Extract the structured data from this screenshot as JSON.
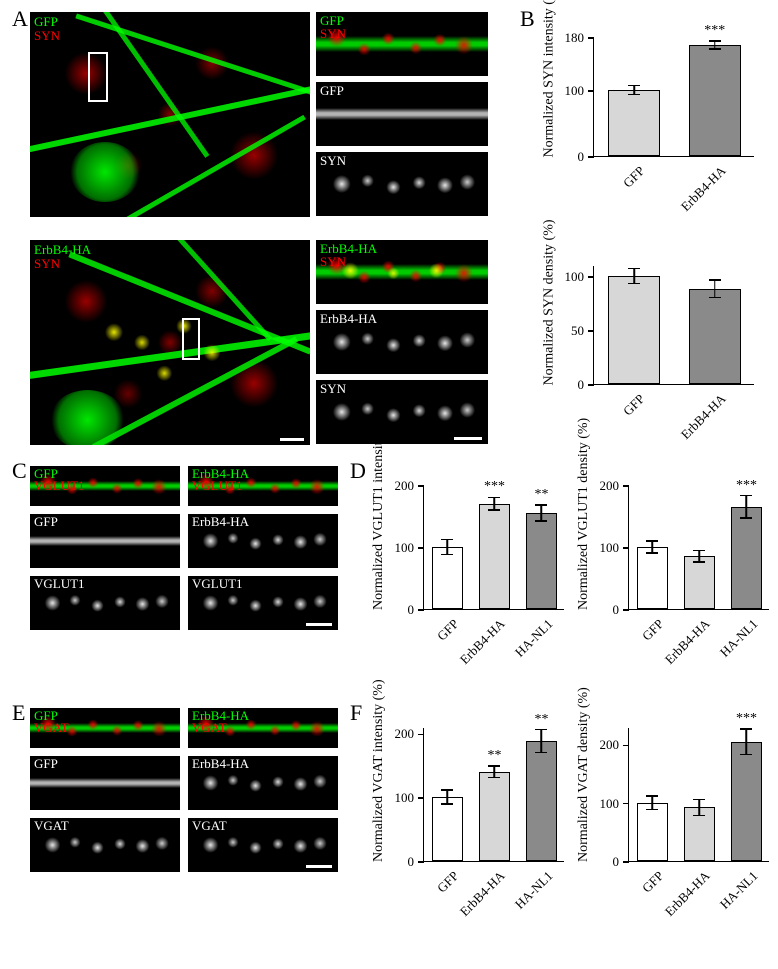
{
  "colors": {
    "green": "#00ff00",
    "red": "#ff0000",
    "white": "#ffffff",
    "black": "#000000",
    "bar_fill_light": "#d7d7d7",
    "bar_fill_mid": "#a9a9a9",
    "bar_fill_dark": "#8a8a8a",
    "page_bg": "#ffffff"
  },
  "panels": {
    "A": {
      "label": "A",
      "top_merge": {
        "labels": [
          "GFP",
          "SYN"
        ]
      },
      "top_insets": [
        {
          "labels": [
            "GFP",
            "SYN"
          ]
        },
        {
          "labels": [
            "GFP"
          ]
        },
        {
          "labels": [
            "SYN"
          ]
        }
      ],
      "bottom_merge": {
        "labels": [
          "ErbB4-HA",
          "SYN"
        ]
      },
      "bottom_insets": [
        {
          "labels": [
            "ErbB4-HA",
            "SYN"
          ]
        },
        {
          "labels": [
            "ErbB4-HA"
          ]
        },
        {
          "labels": [
            "SYN"
          ]
        }
      ]
    },
    "B": {
      "label": "B",
      "charts": [
        {
          "ylabel": "Normalized SYN intensity (%)",
          "ylim": [
            0,
            180
          ],
          "yticks": [
            0,
            100,
            180
          ],
          "bars": [
            {
              "label": "GFP",
              "value": 100,
              "err": 7,
              "fill": "#d7d7d7",
              "sig": ""
            },
            {
              "label": "ErbB4-HA",
              "value": 168,
              "err": 6,
              "fill": "#8a8a8a",
              "sig": "***"
            }
          ]
        },
        {
          "ylabel": "Normalized SYN density (%)",
          "ylim": [
            0,
            110
          ],
          "yticks": [
            0,
            50,
            100
          ],
          "bars": [
            {
              "label": "GFP",
              "value": 100,
              "err": 7,
              "fill": "#d7d7d7",
              "sig": ""
            },
            {
              "label": "ErbB4-HA",
              "value": 88,
              "err": 8,
              "fill": "#8a8a8a",
              "sig": ""
            }
          ]
        }
      ]
    },
    "C": {
      "label": "C",
      "left": {
        "labels_top": [
          "GFP",
          "VGLUT1"
        ],
        "labels_mid": [
          "GFP"
        ],
        "labels_bot": [
          "VGLUT1"
        ]
      },
      "right": {
        "labels_top": [
          "ErbB4-HA",
          "VGLUT1"
        ],
        "labels_mid": [
          "ErbB4-HA"
        ],
        "labels_bot": [
          "VGLUT1"
        ]
      }
    },
    "D": {
      "label": "D",
      "charts": [
        {
          "ylabel": "Normalized VGLUT1 intensity (%)",
          "ylim": [
            0,
            200
          ],
          "yticks": [
            0,
            100,
            200
          ],
          "bars": [
            {
              "label": "GFP",
              "value": 100,
              "err": 12,
              "fill": "#ffffff",
              "sig": ""
            },
            {
              "label": "ErbB4-HA",
              "value": 170,
              "err": 10,
              "fill": "#d7d7d7",
              "sig": "***"
            },
            {
              "label": "HA-NL1",
              "value": 155,
              "err": 13,
              "fill": "#8a8a8a",
              "sig": "**"
            }
          ]
        },
        {
          "ylabel": "Normalized VGLUT1 density (%)",
          "ylim": [
            0,
            200
          ],
          "yticks": [
            0,
            100,
            200
          ],
          "bars": [
            {
              "label": "GFP",
              "value": 100,
              "err": 10,
              "fill": "#ffffff",
              "sig": ""
            },
            {
              "label": "ErbB4-HA",
              "value": 85,
              "err": 9,
              "fill": "#d7d7d7",
              "sig": ""
            },
            {
              "label": "HA-NL1",
              "value": 165,
              "err": 18,
              "fill": "#8a8a8a",
              "sig": "***"
            }
          ]
        }
      ]
    },
    "E": {
      "label": "E",
      "left": {
        "labels_top": [
          "GFP",
          "VGAT"
        ],
        "labels_mid": [
          "GFP"
        ],
        "labels_bot": [
          "VGAT"
        ]
      },
      "right": {
        "labels_top": [
          "ErbB4-HA",
          "VGAT"
        ],
        "labels_mid": [
          "ErbB4-HA"
        ],
        "labels_bot": [
          "VGAT"
        ]
      }
    },
    "F": {
      "label": "F",
      "charts": [
        {
          "ylabel": "Normalized VGAT intensity (%)",
          "ylim": [
            0,
            210
          ],
          "yticks": [
            0,
            100,
            200
          ],
          "bars": [
            {
              "label": "GFP",
              "value": 100,
              "err": 11,
              "fill": "#ffffff",
              "sig": ""
            },
            {
              "label": "ErbB4-HA",
              "value": 140,
              "err": 9,
              "fill": "#d7d7d7",
              "sig": "**"
            },
            {
              "label": "HA-NL1",
              "value": 188,
              "err": 18,
              "fill": "#8a8a8a",
              "sig": "**"
            }
          ]
        },
        {
          "ylabel": "Normalized VGAT density (%)",
          "ylim": [
            0,
            230
          ],
          "yticks": [
            0,
            100,
            200
          ],
          "bars": [
            {
              "label": "GFP",
              "value": 100,
              "err": 12,
              "fill": "#ffffff",
              "sig": ""
            },
            {
              "label": "ErbB4-HA",
              "value": 92,
              "err": 14,
              "fill": "#d7d7d7",
              "sig": ""
            },
            {
              "label": "HA-NL1",
              "value": 205,
              "err": 22,
              "fill": "#8a8a8a",
              "sig": "***"
            }
          ]
        }
      ]
    }
  }
}
